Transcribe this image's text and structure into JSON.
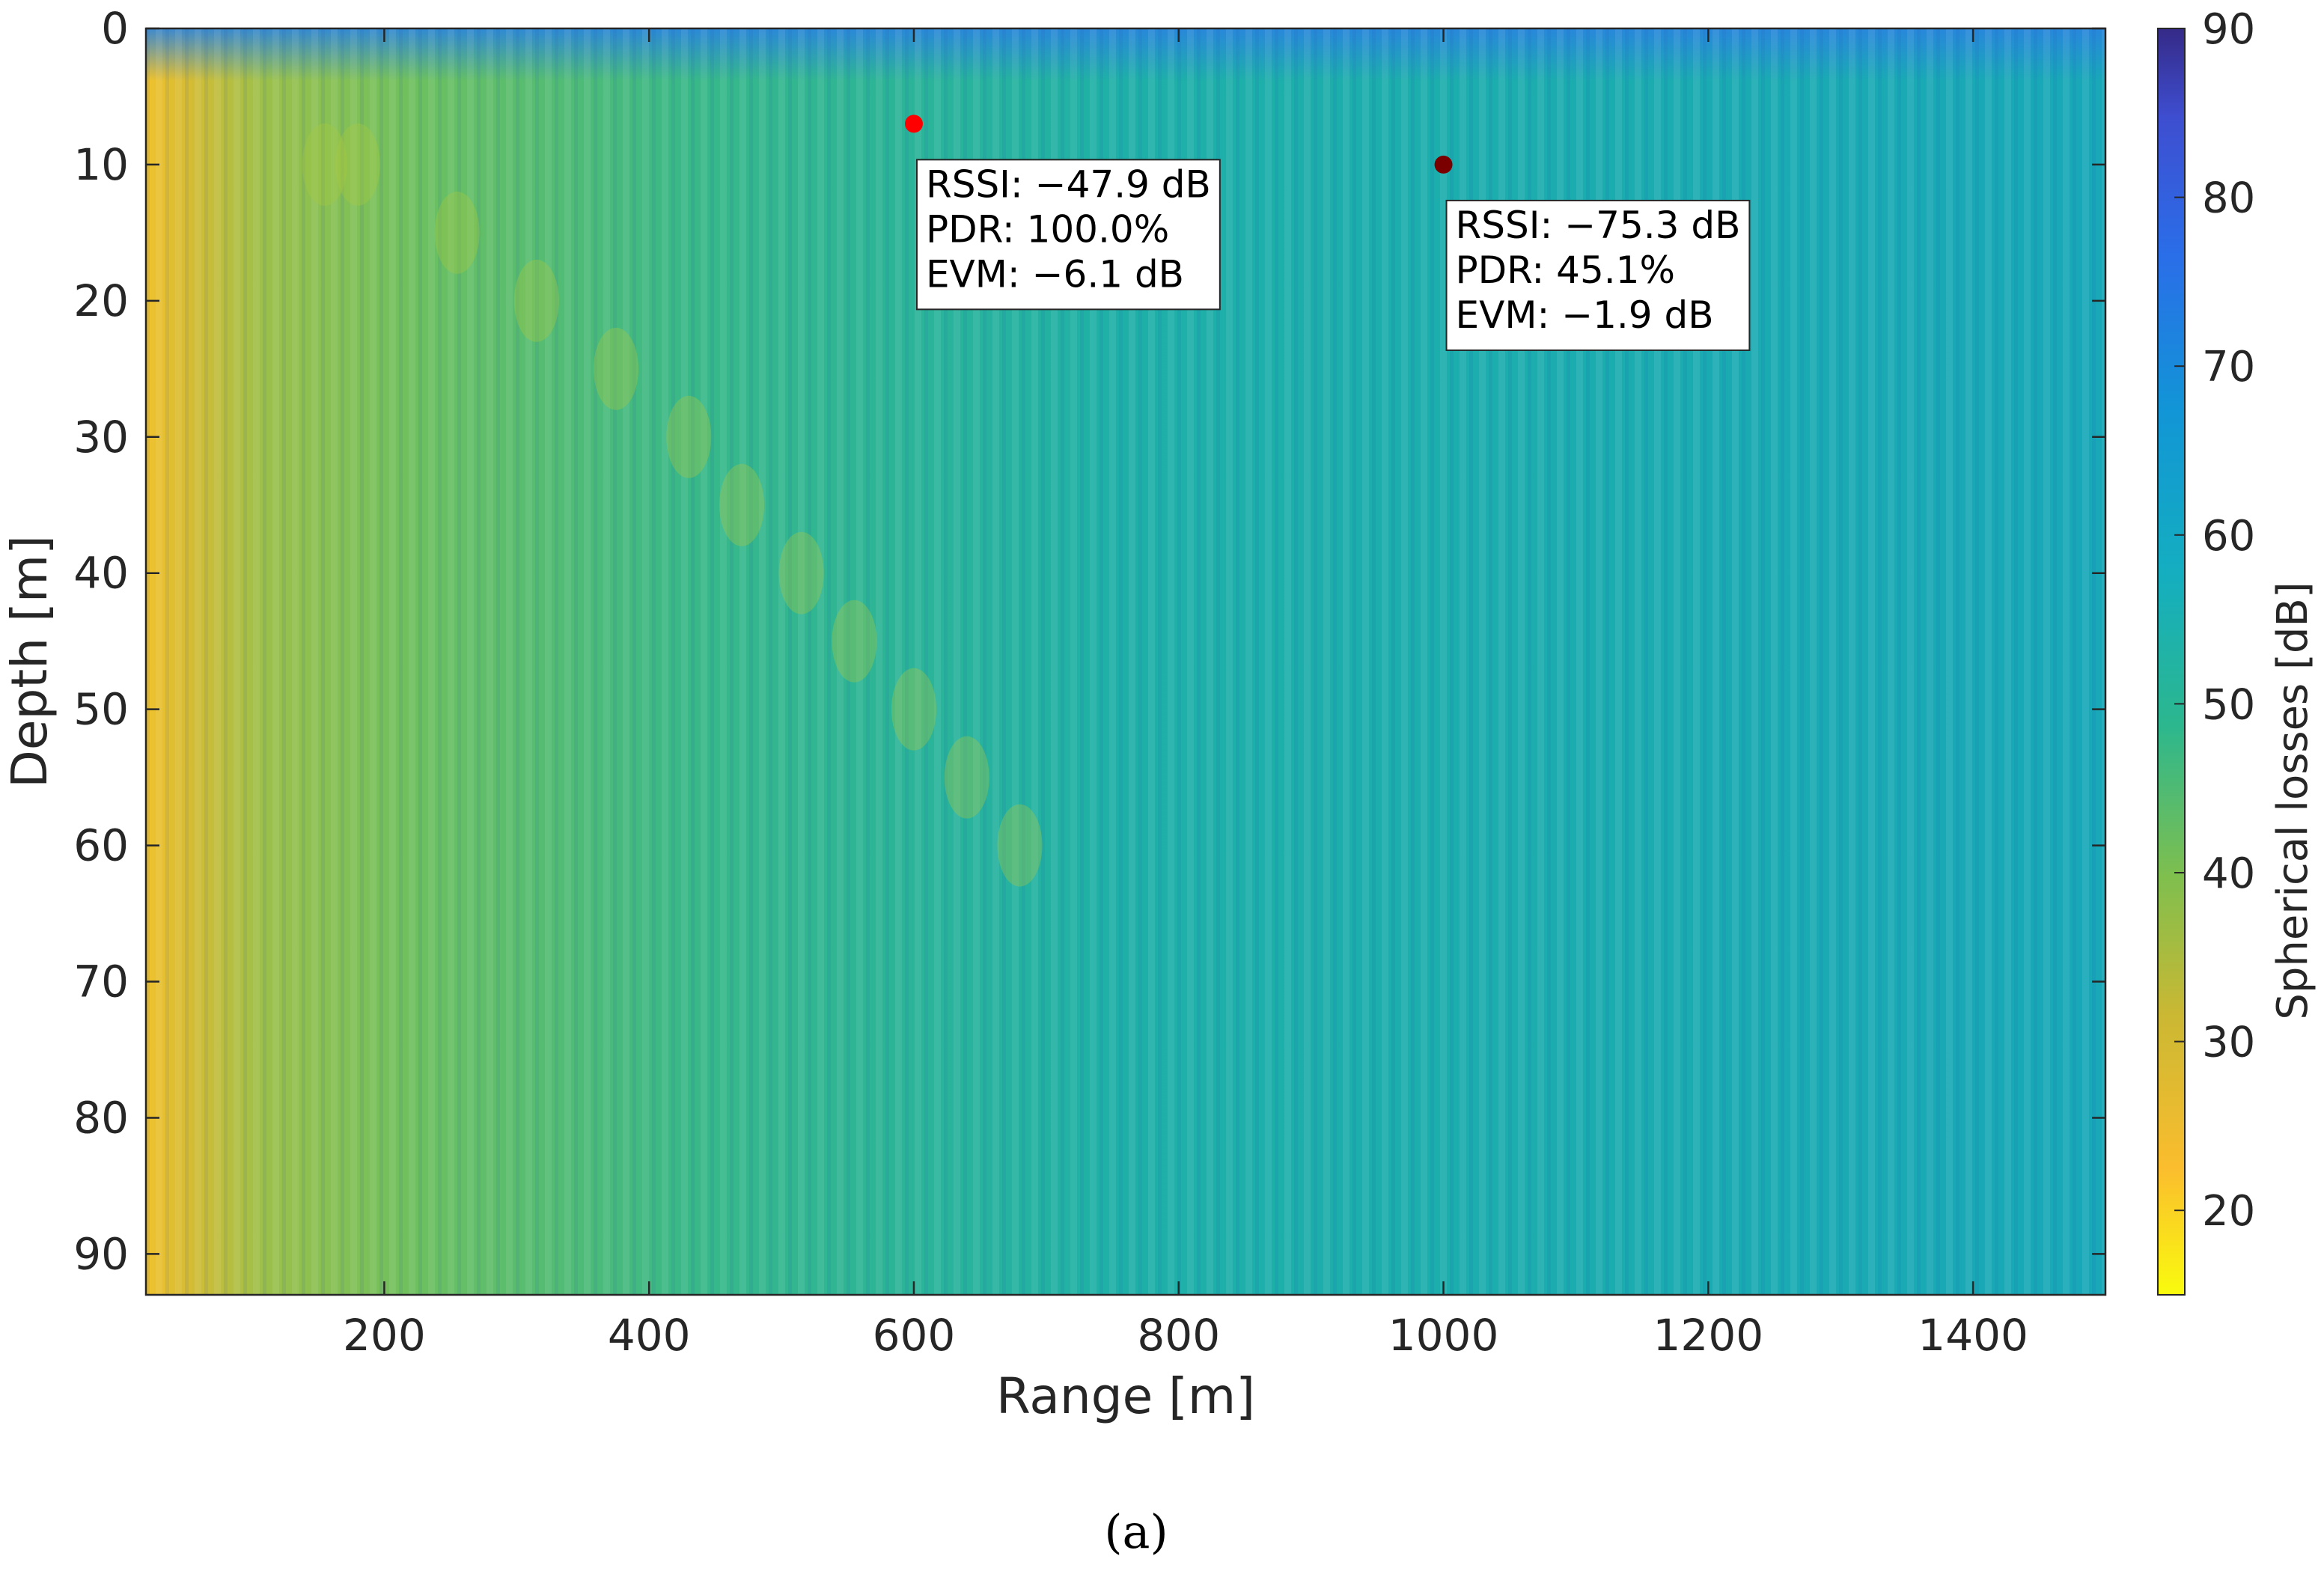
{
  "chart_data": {
    "type": "heatmap",
    "title": "",
    "xlabel": "Range [m]",
    "ylabel": "Depth [m]",
    "xlim": [
      20,
      1500
    ],
    "ylim": [
      0,
      93
    ],
    "y_reversed": true,
    "x_ticks": [
      200,
      400,
      600,
      800,
      1000,
      1200,
      1400
    ],
    "y_ticks": [
      0,
      10,
      20,
      30,
      40,
      50,
      60,
      70,
      80,
      90
    ],
    "colorbar": {
      "label": "Spherical losses [dB]",
      "range": [
        15,
        90
      ],
      "ticks": [
        20,
        30,
        40,
        50,
        60,
        70,
        80,
        90
      ],
      "colormap": "parula-reversed",
      "low_color": "#f9fb0e",
      "high_color": "#352a87"
    },
    "grid": false,
    "markers": [
      {
        "name": "point-600",
        "x": 600,
        "y": 7,
        "color": "#ff0000",
        "annotation": [
          "RSSI: −47.9 dB",
          "PDR: 100.0%",
          "EVM: −6.1 dB"
        ]
      },
      {
        "name": "point-1000",
        "x": 1000,
        "y": 10,
        "color": "#7a0000",
        "annotation": [
          "RSSI: −75.3 dB",
          "PDR: 45.1%",
          "EVM: −1.9 dB"
        ]
      }
    ]
  },
  "caption": "(a)"
}
